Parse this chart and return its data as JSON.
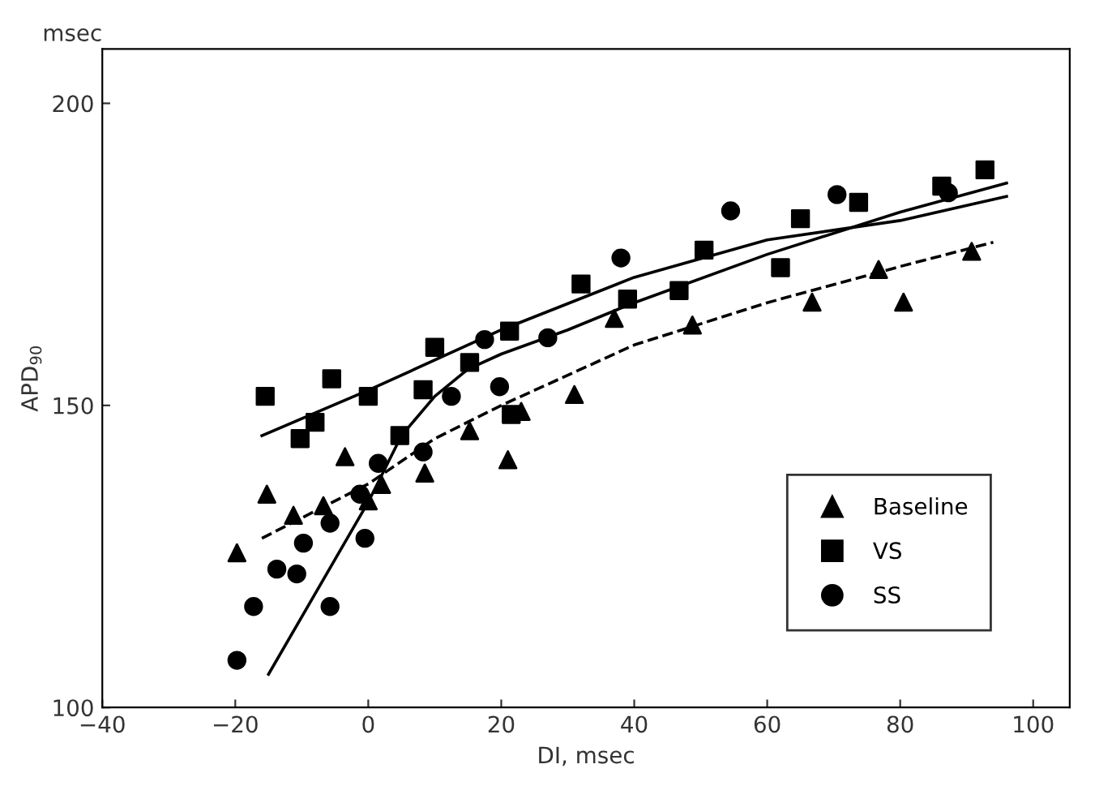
{
  "chart_data": {
    "type": "scatter",
    "xlabel": "DI, msec",
    "ylabel": "APD$_{90}$",
    "annotations": [
      "msec"
    ],
    "xlim": [
      -40,
      105.5
    ],
    "ylim": [
      100,
      209
    ],
    "xticks": [
      -40,
      -20,
      0,
      20,
      40,
      60,
      80,
      100
    ],
    "yticks": [
      100,
      150,
      200
    ],
    "grid": false,
    "legend": "bottom right",
    "series": [
      {
        "name": "Baseline",
        "marker": "triangle",
        "color": "#000000",
        "x": [
          -19.75,
          -15.25,
          -11.25,
          -6.75,
          -3.5,
          0,
          2,
          8.5,
          15.25,
          21,
          23,
          31,
          37,
          48.75,
          66.75,
          76.75,
          80.5,
          90.75
        ],
        "values": [
          125.6,
          135.3,
          131.8,
          133.4,
          141.5,
          134.2,
          136.9,
          138.8,
          145.8,
          141,
          149,
          151.8,
          164.4,
          163.3,
          167.1,
          172.5,
          167.1,
          175.5
        ]
      },
      {
        "name": "VS",
        "marker": "square",
        "color": "#000000",
        "x": [
          -15.5,
          -10.25,
          -8,
          -5.5,
          0,
          4.75,
          8.25,
          10,
          15.25,
          21.25,
          21.5,
          32,
          39,
          46.75,
          50.5,
          62,
          65,
          73.75,
          86.25,
          92.75
        ],
        "values": [
          151.5,
          144.5,
          147.2,
          154.4,
          151.5,
          145,
          152.6,
          159.6,
          157.1,
          162.3,
          148.5,
          170.1,
          167.6,
          169,
          175.7,
          172.8,
          180.9,
          183.6,
          186.3,
          189
        ]
      },
      {
        "name": "SS",
        "marker": "circle",
        "color": "#000000",
        "x": [
          -19.75,
          -17.25,
          -13.75,
          -10.75,
          -9.75,
          -5.75,
          -5.75,
          -0.5,
          -1.25,
          1.5,
          8.25,
          12.5,
          17.5,
          19.75,
          27,
          38,
          54.5,
          70.5,
          87.25
        ],
        "values": [
          107.8,
          116.7,
          122.9,
          122.1,
          127.2,
          116.7,
          130.5,
          128,
          135.3,
          140.4,
          142.3,
          151.5,
          160.9,
          153.1,
          161.2,
          174.4,
          182.2,
          184.9,
          185.2
        ]
      },
      {
        "type": "line",
        "marker": "none",
        "line_style": "dashed",
        "color": "#000000",
        "x": [
          -16,
          0,
          10,
          20,
          40,
          60,
          80,
          94
        ],
        "values": [
          128,
          137,
          144.5,
          150,
          160,
          167,
          173,
          177
        ]
      },
      {
        "type": "line",
        "marker": "none",
        "line_style": "solid",
        "color": "#000000",
        "x": [
          -16,
          0,
          20,
          40,
          60,
          80,
          96
        ],
        "values": [
          145,
          152.5,
          162.5,
          171.2,
          177.4,
          180.6,
          184.6
        ]
      },
      {
        "type": "line",
        "marker": "none",
        "line_style": "solid",
        "color": "#000000",
        "x": [
          -15,
          0,
          5,
          10,
          15,
          20,
          30,
          40,
          60,
          80,
          96
        ],
        "values": [
          105.5,
          134,
          145,
          151.5,
          156,
          158.5,
          162.5,
          167,
          175,
          182,
          186.8
        ]
      }
    ]
  }
}
